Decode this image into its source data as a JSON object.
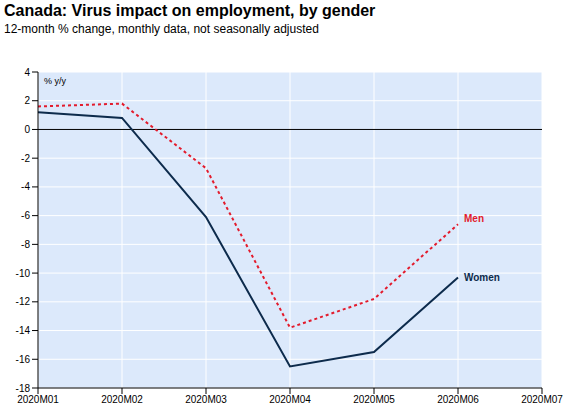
{
  "chart_data": {
    "type": "line",
    "title": "Canada: Virus impact on employment, by gender",
    "subtitle": "12-month % change, monthly data, not seasonally adjusted",
    "y_label": "% y/y",
    "categories": [
      "2020M01",
      "2020M02",
      "2020M03",
      "2020M04",
      "2020M05",
      "2020M06",
      "2020M07"
    ],
    "series": [
      {
        "name": "Men",
        "color": "#e31b2c",
        "line_style": "dotted",
        "values": [
          1.6,
          1.8,
          -2.7,
          -13.8,
          -11.8,
          -6.6,
          null
        ]
      },
      {
        "name": "Women",
        "color": "#0d2b4c",
        "line_style": "solid",
        "values": [
          1.2,
          0.8,
          -6.1,
          -16.5,
          -15.5,
          -10.3,
          null
        ]
      }
    ],
    "ylim": [
      -18,
      4
    ],
    "yticks": [
      -18,
      -16,
      -14,
      -12,
      -10,
      -8,
      -6,
      -4,
      -2,
      0,
      2,
      4
    ],
    "grid": true
  }
}
